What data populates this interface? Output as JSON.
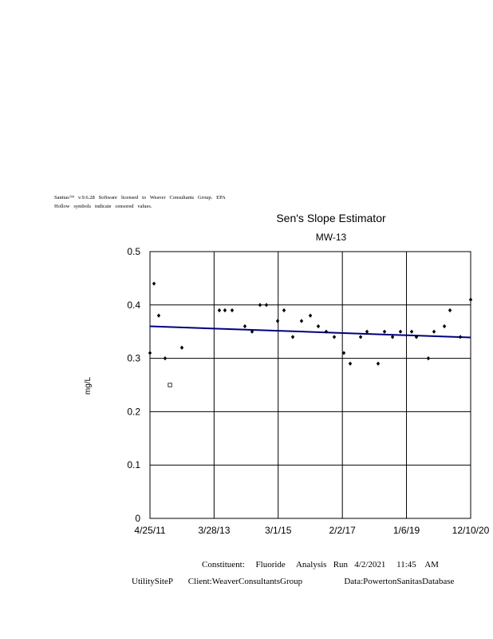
{
  "chart_data": {
    "type": "scatter",
    "notes": [
      "Sanitas™   v.9.6.28   Software   licensed   to   Weaver   Consultants   Group.   EPA",
      "Hollow   symbols   indicate   censored   values."
    ],
    "title": "Sen's Slope Estimator",
    "subtitle": "MW-13",
    "y_label": "mg/L",
    "footer": [
      "Constituent:     Fluoride     Analysis   Run   4/2/2021     11:45    AM",
      "UtilitySiteP       Client:WeaverConsultantsGroup                   Data:PowertonSanitasDatabase"
    ],
    "x": [
      "4/25/11",
      "6/8/11",
      "7/30/11",
      "10/8/11",
      "11/30/11",
      "4/9/12",
      "5/25/13",
      "7/25/13",
      "10/12/13",
      "3/1/14",
      "5/19/14",
      "8/14/14",
      "10/23/14",
      "2/23/15",
      "5/4/15",
      "8/8/15",
      "11/12/15",
      "2/17/16",
      "5/14/16",
      "8/9/16",
      "11/5/16",
      "2/18/17",
      "4/29/17",
      "8/21/17",
      "10/30/17",
      "3/1/18",
      "5/10/18",
      "8/6/18",
      "11/1/18",
      "3/4/19",
      "4/25/19",
      "9/3/19",
      "11/4/19",
      "2/26/20",
      "4/27/20",
      "8/19/20",
      "12/10/20"
    ],
    "values": [
      0.31,
      0.44,
      0.38,
      0.3,
      0.25,
      0.32,
      0.39,
      0.39,
      0.39,
      0.36,
      0.35,
      0.4,
      0.4,
      0.37,
      0.39,
      0.34,
      0.37,
      0.38,
      0.36,
      0.35,
      0.34,
      0.31,
      0.29,
      0.34,
      0.35,
      0.29,
      0.35,
      0.34,
      0.35,
      0.35,
      0.34,
      0.3,
      0.35,
      0.36,
      0.39,
      0.34,
      0.41
    ],
    "hollow": [
      4
    ],
    "color": "#000000",
    "trend": {
      "x": [
        "4/25/11",
        "12/10/20"
      ],
      "values": [
        0.36,
        0.339
      ],
      "color": "#000080"
    },
    "xlim": [
      "4/25/11",
      "12/10/20"
    ],
    "xticks": [
      "4/25/11",
      "3/28/13",
      "3/1/15",
      "2/2/17",
      "1/6/19",
      "12/10/20"
    ],
    "ylim": [
      0,
      0.5
    ],
    "yticks": [
      0,
      0.1,
      0.2,
      0.3,
      0.4,
      0.5
    ],
    "grid": true
  }
}
